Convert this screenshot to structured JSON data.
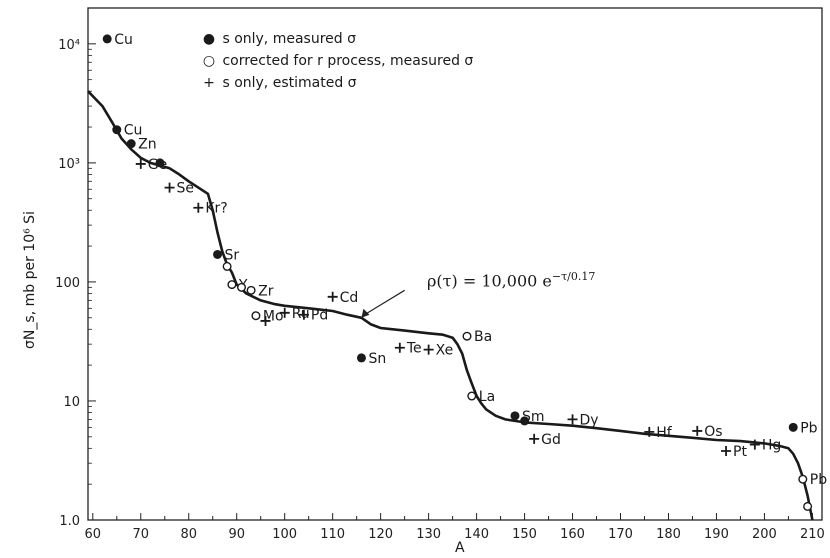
{
  "chart_data": {
    "type": "scatter",
    "title": "",
    "xlabel": "A",
    "ylabel": "σN_s, mb per 10⁶ Si",
    "xlim": [
      59,
      212
    ],
    "ylim": [
      1.0,
      20000
    ],
    "yscale": "log",
    "xticks": [
      "60",
      "70",
      "80",
      "90",
      "100",
      "110",
      "120",
      "130",
      "140",
      "150",
      "160",
      "170",
      "180",
      "190",
      "200",
      "210"
    ],
    "yticks": [
      "1.0",
      "10",
      "100",
      "10³",
      "10⁴"
    ],
    "legend": [
      {
        "symbol": "●",
        "text": "s only, measured σ"
      },
      {
        "symbol": "○",
        "text": "corrected for r process, measured σ"
      },
      {
        "symbol": "+",
        "text": "s only, estimated σ"
      }
    ],
    "annotation": "ρ(τ) = 10,000 e^{−τ/0.17}",
    "annotation_display": "ρ(τ) = 10,000 e",
    "annotation_exp": "−τ/0.17",
    "series": [
      {
        "name": "s only, measured σ",
        "marker": "filled",
        "points": [
          {
            "label": "Cu",
            "x": 63,
            "y": 11000
          },
          {
            "label": "Cu",
            "x": 65,
            "y": 1900
          },
          {
            "label": "Zn",
            "x": 68,
            "y": 1450
          },
          {
            "label": "",
            "x": 74,
            "y": 1000
          },
          {
            "label": "Sr",
            "x": 86,
            "y": 170
          },
          {
            "label": "Sn",
            "x": 116,
            "y": 23
          },
          {
            "label": "Sm",
            "x": 148,
            "y": 7.5
          },
          {
            "label": "",
            "x": 150,
            "y": 6.8
          },
          {
            "label": "Pb",
            "x": 206,
            "y": 6
          }
        ]
      },
      {
        "name": "corrected for r process, measured σ",
        "marker": "open",
        "points": [
          {
            "label": "",
            "x": 88,
            "y": 135
          },
          {
            "label": "Y",
            "x": 89,
            "y": 95
          },
          {
            "label": "",
            "x": 91,
            "y": 90
          },
          {
            "label": "Zr",
            "x": 93,
            "y": 85
          },
          {
            "label": "Mo",
            "x": 94,
            "y": 52
          },
          {
            "label": "Ba",
            "x": 138,
            "y": 35
          },
          {
            "label": "La",
            "x": 139,
            "y": 11
          },
          {
            "label": "Pb",
            "x": 208,
            "y": 2.2
          },
          {
            "label": "",
            "x": 209,
            "y": 1.3
          }
        ]
      },
      {
        "name": "s only, estimated σ",
        "marker": "plus",
        "points": [
          {
            "label": "Ge",
            "x": 70,
            "y": 980
          },
          {
            "label": "Se",
            "x": 76,
            "y": 620
          },
          {
            "label": "Kr?",
            "x": 82,
            "y": 420
          },
          {
            "label": "",
            "x": 96,
            "y": 47
          },
          {
            "label": "Ru",
            "x": 100,
            "y": 55
          },
          {
            "label": "Pd",
            "x": 104,
            "y": 53
          },
          {
            "label": "Cd",
            "x": 110,
            "y": 75
          },
          {
            "label": "Te",
            "x": 124,
            "y": 28
          },
          {
            "label": "Xe",
            "x": 130,
            "y": 27
          },
          {
            "label": "Gd",
            "x": 152,
            "y": 4.8
          },
          {
            "label": "Dy",
            "x": 160,
            "y": 7
          },
          {
            "label": "Hf",
            "x": 176,
            "y": 5.5
          },
          {
            "label": "Os",
            "x": 186,
            "y": 5.6
          },
          {
            "label": "Pt",
            "x": 192,
            "y": 3.8
          },
          {
            "label": "Hg",
            "x": 198,
            "y": 4.3
          }
        ]
      }
    ],
    "curve": {
      "x": [
        59,
        62,
        64,
        66,
        68,
        70,
        72,
        74,
        76,
        78,
        80,
        82,
        84,
        85,
        86,
        87,
        88,
        89,
        90,
        92,
        95,
        98,
        100,
        105,
        110,
        113,
        116,
        118,
        120,
        125,
        130,
        133,
        135,
        136,
        137,
        138,
        139,
        140,
        141,
        142,
        144,
        146,
        148,
        150,
        155,
        160,
        165,
        170,
        175,
        180,
        185,
        190,
        195,
        200,
        203,
        205,
        206,
        207,
        208,
        209,
        210
      ],
      "y": [
        4000,
        3000,
        2200,
        1600,
        1300,
        1100,
        1000,
        950,
        900,
        800,
        700,
        620,
        550,
        400,
        260,
        180,
        140,
        120,
        95,
        80,
        70,
        65,
        63,
        60,
        57,
        53,
        50,
        44,
        41,
        39,
        37,
        36,
        34,
        30,
        25,
        18,
        14,
        11,
        9.5,
        8.5,
        7.5,
        7,
        6.8,
        6.6,
        6.4,
        6.2,
        5.9,
        5.6,
        5.3,
        5.1,
        4.9,
        4.7,
        4.6,
        4.4,
        4.2,
        4,
        3.6,
        3,
        2.3,
        1.6,
        1.0
      ]
    }
  }
}
